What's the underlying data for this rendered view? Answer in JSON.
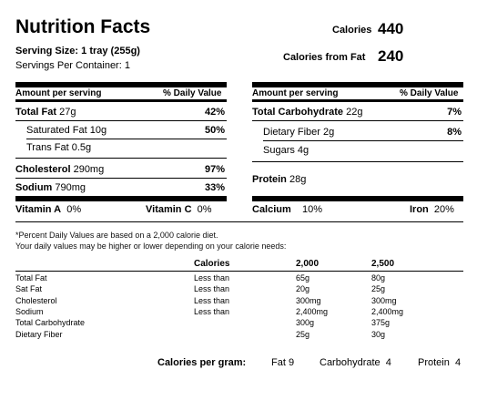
{
  "title": "Nutrition Facts",
  "calories": {
    "label": "Calories",
    "value": "440"
  },
  "calories_fat": {
    "label": "Calories from Fat",
    "value": "240"
  },
  "serving": {
    "size_label": "Serving Size:",
    "size_value": "1 tray (255g)",
    "per_container": "Servings Per Container: 1"
  },
  "left": {
    "header_amount": "Amount per serving",
    "header_dv": "% Daily Value",
    "rows": [
      {
        "name": "Total Fat",
        "amount": "27g",
        "dv": "42%"
      },
      {
        "name": "Saturated Fat",
        "amount": "10g",
        "dv": "50%"
      },
      {
        "name": "Trans Fat",
        "amount": "0.5g",
        "dv": ""
      },
      {
        "name": "Cholesterol",
        "amount": "290mg",
        "dv": "97%"
      },
      {
        "name": "Sodium",
        "amount": "790mg",
        "dv": "33%"
      }
    ]
  },
  "right": {
    "header_amount": "Amount per serving",
    "header_dv": "% Daily Value",
    "rows": [
      {
        "name": "Total Carbohydrate",
        "amount": "22g",
        "dv": "7%"
      },
      {
        "name": "Dietary Fiber",
        "amount": "2g",
        "dv": "8%"
      },
      {
        "name": "Sugars",
        "amount": "4g",
        "dv": ""
      },
      {
        "name": "Protein",
        "amount": "28g",
        "dv": ""
      }
    ]
  },
  "vitamins": {
    "a_label": "Vitamin A",
    "a_value": "0%",
    "c_label": "Vitamin C",
    "c_value": "0%",
    "calcium_label": "Calcium",
    "calcium_value": "10%",
    "iron_label": "Iron",
    "iron_value": "20%"
  },
  "note": {
    "line1": "*Percent Daily Values are based on a 2,000 calorie diet.",
    "line2": "Your daily values may be higher or lower depending on your calorie needs:"
  },
  "dv_table": {
    "headers": [
      "Calories",
      "2,000",
      "2,500"
    ],
    "rows": [
      {
        "name": "Total Fat",
        "limit": "Less than",
        "v2000": "65g",
        "v2500": "80g"
      },
      {
        "name": "Sat Fat",
        "limit": "Less than",
        "v2000": "20g",
        "v2500": "25g"
      },
      {
        "name": "Cholesterol",
        "limit": "Less than",
        "v2000": "300mg",
        "v2500": "300mg"
      },
      {
        "name": "Sodium",
        "limit": "Less than",
        "v2000": "2,400mg",
        "v2500": "2,400mg"
      },
      {
        "name": "Total Carbohydrate",
        "limit": "",
        "v2000": "300g",
        "v2500": "375g"
      },
      {
        "name": "Dietary Fiber",
        "limit": "",
        "v2000": "25g",
        "v2500": "30g"
      }
    ]
  },
  "per_gram": {
    "label": "Calories per gram:",
    "fat_label": "Fat",
    "fat_value": "9",
    "carb_label": "Carbohydrate",
    "carb_value": "4",
    "protein_label": "Protein",
    "protein_value": "4"
  }
}
